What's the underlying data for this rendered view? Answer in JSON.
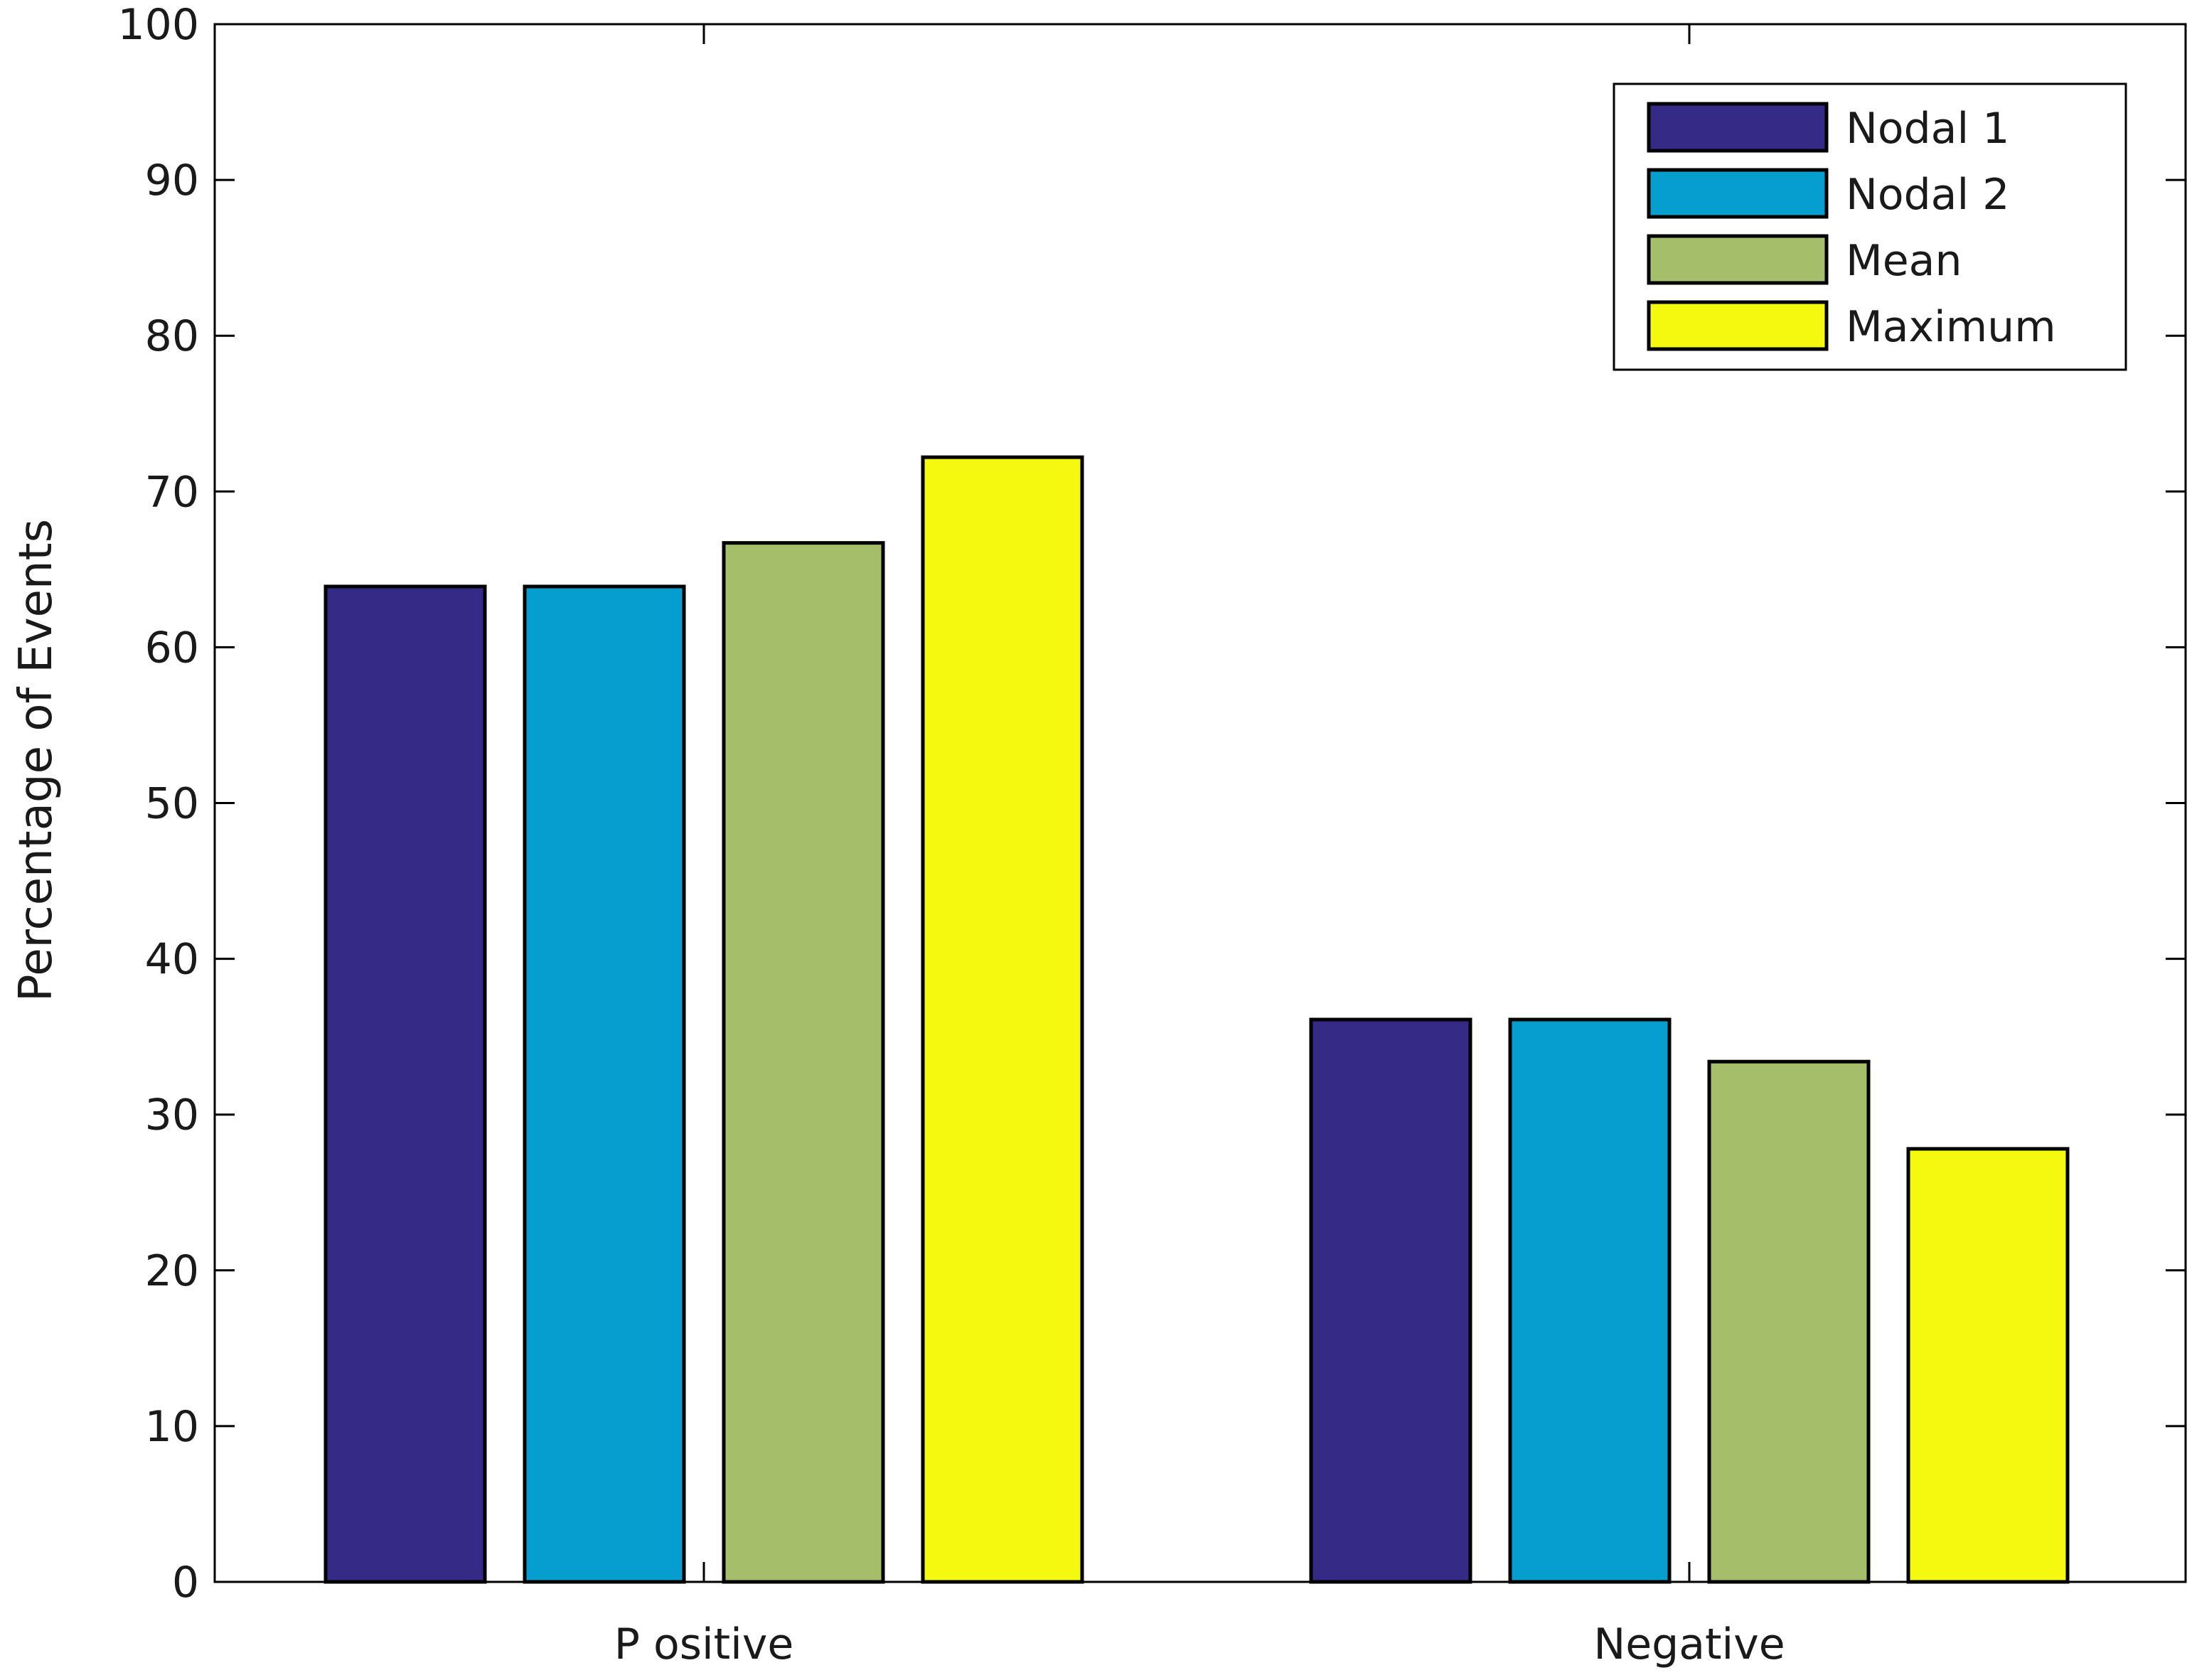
{
  "chart_data": {
    "type": "bar",
    "categories": [
      "Positive",
      "Negative"
    ],
    "series": [
      {
        "name": "Nodal 1",
        "color": "#352a86",
        "values": [
          63.9,
          36.1
        ]
      },
      {
        "name": "Nodal 2",
        "color": "#069dcf",
        "values": [
          63.9,
          36.1
        ]
      },
      {
        "name": "Mean",
        "color": "#a5be6a",
        "values": [
          66.7,
          33.4
        ]
      },
      {
        "name": "Maximum",
        "color": "#f5f90f",
        "values": [
          72.2,
          27.8
        ]
      }
    ],
    "xlabel": "",
    "ylabel": "Percentage of Events",
    "ylim": [
      0,
      100
    ],
    "yticks": [
      0,
      10,
      20,
      30,
      40,
      50,
      60,
      70,
      80,
      90,
      100
    ],
    "ytick_labels": [
      "0",
      "10",
      "20",
      "30",
      "40",
      "50",
      "60",
      "70",
      "80",
      "90",
      "100"
    ],
    "xtick_labels": [
      "P ositive",
      "Negative"
    ],
    "grid": false,
    "legend_position": "top-right"
  }
}
